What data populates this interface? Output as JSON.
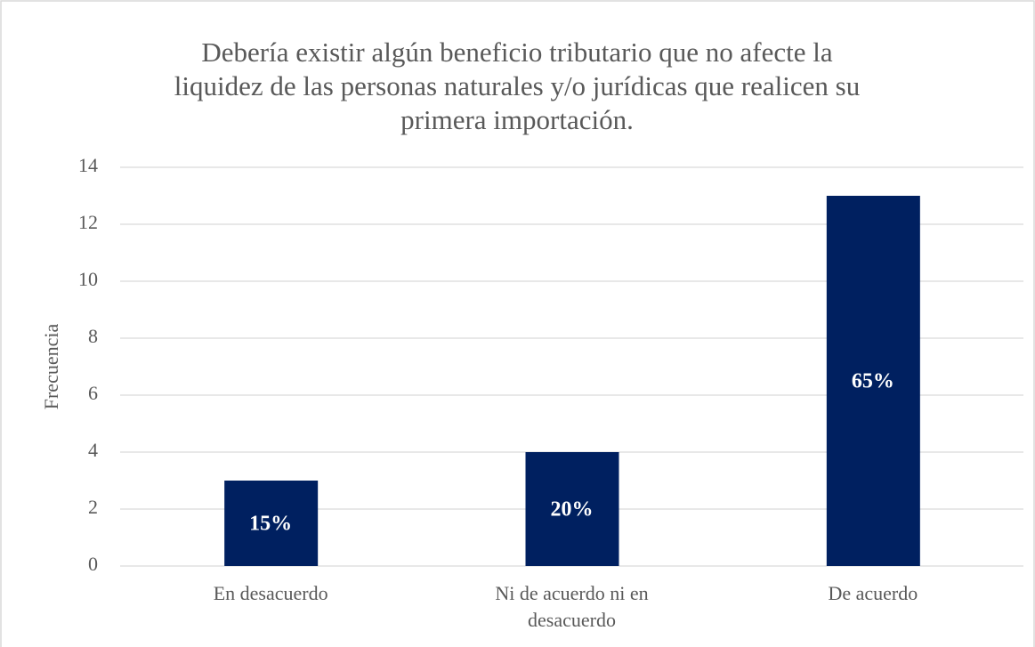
{
  "chart_data": {
    "type": "bar",
    "title": [
      "Debería existir algún beneficio tributario que no afecte la",
      "liquidez de las personas naturales y/o jurídicas que realicen su",
      "primera importación."
    ],
    "y_label": "Frecuencia",
    "categories": [
      "En desacuerdo",
      "Ni de acuerdo ni en desacuerdo",
      "De acuerdo"
    ],
    "values": [
      3,
      4,
      13
    ],
    "value_labels": [
      "15%",
      "20%",
      "65%"
    ],
    "color": "#002060",
    "ylim": [
      0,
      14
    ],
    "yticks": [
      0,
      2,
      4,
      6,
      8,
      10,
      12,
      14
    ],
    "grid": true
  }
}
